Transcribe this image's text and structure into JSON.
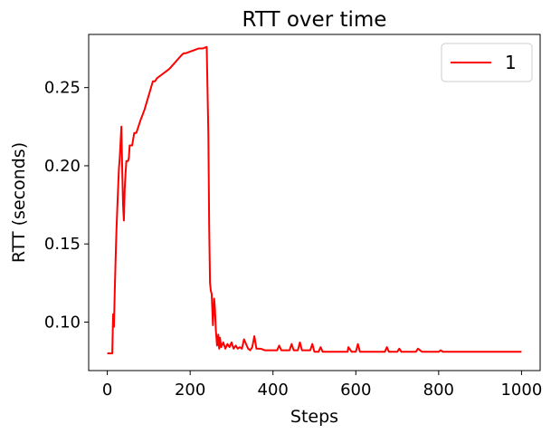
{
  "chart_data": {
    "type": "line",
    "title": "RTT over time",
    "xlabel": "Steps",
    "ylabel": "RTT (seconds)",
    "xlim": [
      -45,
      1045
    ],
    "ylim": [
      0.069,
      0.284
    ],
    "xticks": [
      0,
      200,
      400,
      600,
      800,
      1000
    ],
    "yticks": [
      0.1,
      0.15,
      0.2,
      0.25
    ],
    "ytick_labels": [
      "0.10",
      "0.15",
      "0.20",
      "0.25"
    ],
    "grid": false,
    "legend": {
      "position": "top-right"
    },
    "series": [
      {
        "name": "1",
        "color": "#ff0000",
        "x": [
          0,
          8,
          10,
          12,
          14,
          16,
          18,
          20,
          22,
          24,
          26,
          28,
          30,
          32,
          34,
          36,
          38,
          40,
          42,
          44,
          46,
          48,
          50,
          52,
          54,
          56,
          60,
          65,
          70,
          80,
          90,
          100,
          110,
          115,
          120,
          130,
          140,
          150,
          160,
          170,
          180,
          185,
          190,
          200,
          210,
          220,
          230,
          240,
          244,
          246,
          248,
          250,
          252,
          255,
          258,
          260,
          262,
          265,
          268,
          270,
          272,
          275,
          280,
          285,
          290,
          295,
          300,
          305,
          310,
          315,
          320,
          325,
          330,
          340,
          345,
          350,
          355,
          360,
          370,
          380,
          390,
          400,
          410,
          415,
          420,
          430,
          440,
          445,
          450,
          460,
          465,
          470,
          480,
          490,
          495,
          500,
          510,
          515,
          520,
          540,
          560,
          580,
          582,
          590,
          600,
          605,
          610,
          620,
          640,
          660,
          670,
          675,
          680,
          690,
          700,
          705,
          710,
          720,
          740,
          745,
          750,
          760,
          780,
          800,
          805,
          810,
          820,
          840,
          860,
          880,
          900,
          920,
          940,
          960,
          980,
          1000
        ],
        "y": [
          0.08,
          0.08,
          0.08,
          0.08,
          0.105,
          0.097,
          0.12,
          0.14,
          0.158,
          0.172,
          0.185,
          0.198,
          0.205,
          0.215,
          0.225,
          0.198,
          0.175,
          0.165,
          0.185,
          0.195,
          0.203,
          0.203,
          0.203,
          0.205,
          0.213,
          0.213,
          0.213,
          0.221,
          0.221,
          0.229,
          0.236,
          0.245,
          0.254,
          0.254,
          0.256,
          0.258,
          0.26,
          0.262,
          0.265,
          0.268,
          0.271,
          0.272,
          0.272,
          0.273,
          0.274,
          0.275,
          0.275,
          0.276,
          0.22,
          0.16,
          0.125,
          0.12,
          0.118,
          0.098,
          0.115,
          0.108,
          0.095,
          0.085,
          0.092,
          0.083,
          0.09,
          0.084,
          0.087,
          0.083,
          0.086,
          0.084,
          0.087,
          0.083,
          0.085,
          0.083,
          0.084,
          0.083,
          0.089,
          0.083,
          0.082,
          0.084,
          0.091,
          0.083,
          0.083,
          0.082,
          0.082,
          0.082,
          0.082,
          0.085,
          0.082,
          0.082,
          0.082,
          0.086,
          0.082,
          0.082,
          0.087,
          0.082,
          0.082,
          0.082,
          0.086,
          0.081,
          0.081,
          0.084,
          0.081,
          0.081,
          0.081,
          0.081,
          0.084,
          0.081,
          0.081,
          0.086,
          0.081,
          0.081,
          0.081,
          0.081,
          0.081,
          0.084,
          0.081,
          0.081,
          0.081,
          0.083,
          0.081,
          0.081,
          0.081,
          0.081,
          0.083,
          0.081,
          0.081,
          0.081,
          0.082,
          0.081,
          0.081,
          0.081,
          0.081,
          0.081,
          0.081,
          0.081,
          0.081,
          0.081,
          0.081,
          0.081
        ]
      }
    ]
  }
}
